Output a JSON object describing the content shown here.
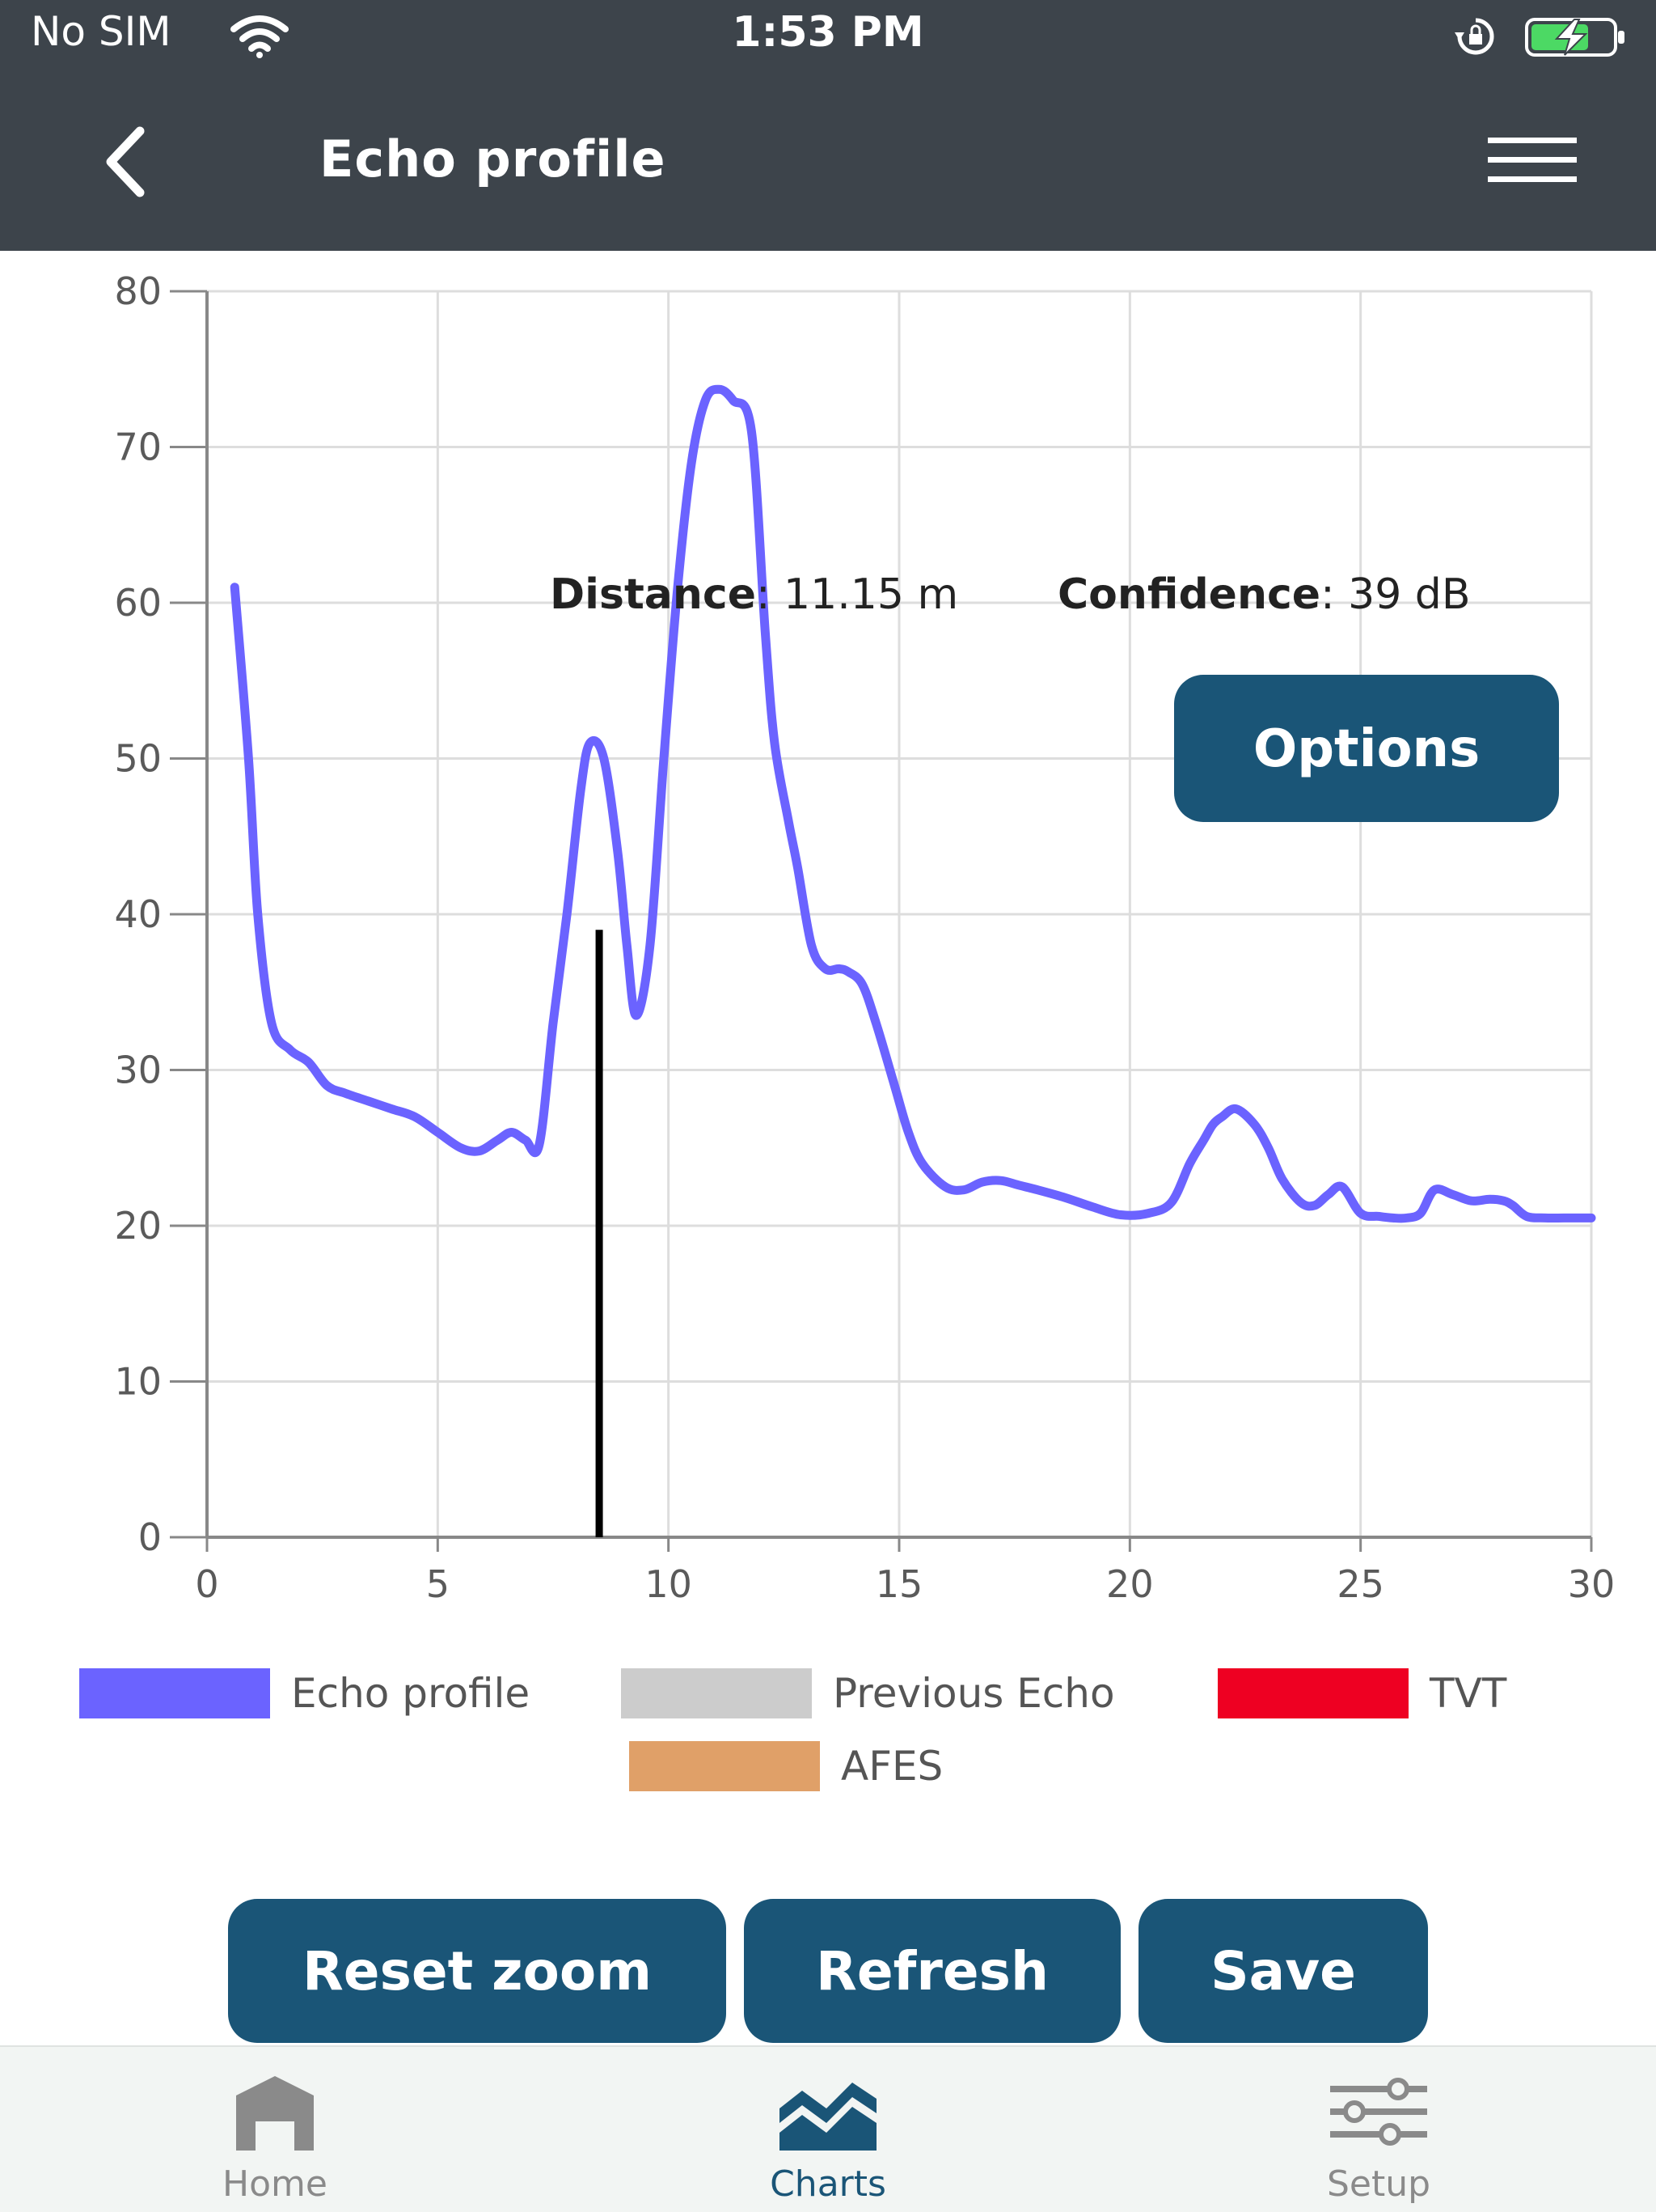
{
  "status_bar": {
    "carrier": "No SIM",
    "time": "1:53 PM"
  },
  "header": {
    "title": "Echo profile"
  },
  "readout": {
    "distance_label": "Distance",
    "distance_value": ": 11.15 m",
    "confidence_label": "Confidence",
    "confidence_value": ": 39 dB"
  },
  "buttons": {
    "options": "Options",
    "reset_zoom": "Reset zoom",
    "refresh": "Refresh",
    "save": "Save"
  },
  "tabs": [
    {
      "label": "Home",
      "icon": "home-icon",
      "active": false
    },
    {
      "label": "Charts",
      "icon": "charts-icon",
      "active": true
    },
    {
      "label": "Setup",
      "icon": "sliders-icon",
      "active": false
    }
  ],
  "colors": {
    "header_bg": "#3d444b",
    "button_bg": "#1a5577",
    "echo_profile": "#6b63ff",
    "previous_echo": "#cccccc",
    "tvt": "#ee0022",
    "afes": "#e0a068",
    "marker": "#000000"
  },
  "chart_data": {
    "type": "line",
    "xlim": [
      0,
      30
    ],
    "ylim": [
      0,
      80
    ],
    "x_ticks": [
      "0",
      "5",
      "10",
      "15",
      "20",
      "25",
      "30"
    ],
    "y_ticks": [
      "0",
      "10",
      "20",
      "30",
      "40",
      "50",
      "60",
      "70",
      "80"
    ],
    "grid": true,
    "legend_position": "bottom",
    "legend": [
      "Echo profile",
      "Previous Echo",
      "TVT",
      "AFES"
    ],
    "series": [
      {
        "name": "Echo profile",
        "x": [
          0.6,
          0.9,
          1.1,
          1.4,
          1.8,
          2.2,
          2.6,
          3.0,
          3.5,
          4.0,
          4.5,
          5.0,
          5.5,
          5.9,
          6.3,
          6.6,
          6.9,
          7.2,
          7.5,
          7.8,
          8.1,
          8.3,
          8.6,
          8.9,
          9.1,
          9.3,
          9.6,
          9.9,
          10.2,
          10.5,
          10.8,
          11.1,
          11.4,
          11.8,
          12.1,
          12.3,
          12.6,
          12.8,
          13.1,
          13.4,
          13.7,
          13.9,
          14.2,
          14.5,
          14.9,
          15.2,
          15.5,
          16.0,
          16.4,
          16.8,
          17.2,
          17.6,
          18.0,
          18.6,
          19.2,
          19.8,
          20.4,
          20.9,
          21.3,
          21.6,
          21.8,
          22.0,
          22.3,
          22.7,
          23.0,
          23.3,
          23.7,
          24.0,
          24.3,
          24.6,
          25.0,
          25.4,
          25.7,
          26.0,
          26.3,
          26.6,
          27.0,
          27.4,
          27.8,
          28.1,
          28.3,
          28.6,
          29.0,
          29.4,
          29.7,
          30.0
        ],
        "values": [
          61,
          50,
          40,
          33,
          31.3,
          30.5,
          29,
          28.5,
          28,
          27.5,
          27,
          26,
          25,
          24.8,
          25.5,
          26,
          25.5,
          25.2,
          33,
          40,
          48,
          51,
          50,
          44,
          38,
          33.5,
          38,
          50,
          61,
          69,
          73,
          73.7,
          73,
          71,
          58,
          51,
          46,
          43,
          38,
          36.5,
          36.5,
          36.3,
          35.5,
          33,
          29,
          26,
          24,
          22.5,
          22.3,
          22.8,
          22.9,
          22.6,
          22.3,
          21.8,
          21.2,
          20.7,
          20.8,
          21.5,
          24,
          25.5,
          26.5,
          27,
          27.5,
          26.5,
          25,
          23,
          21.5,
          21.3,
          22,
          22.5,
          20.8,
          20.6,
          20.5,
          20.5,
          20.8,
          22.3,
          22,
          21.6,
          21.7,
          21.6,
          21.3,
          20.6,
          20.5,
          20.5,
          20.5,
          20.5
        ]
      }
    ],
    "marker": {
      "x": 8.5,
      "y": 39
    }
  }
}
